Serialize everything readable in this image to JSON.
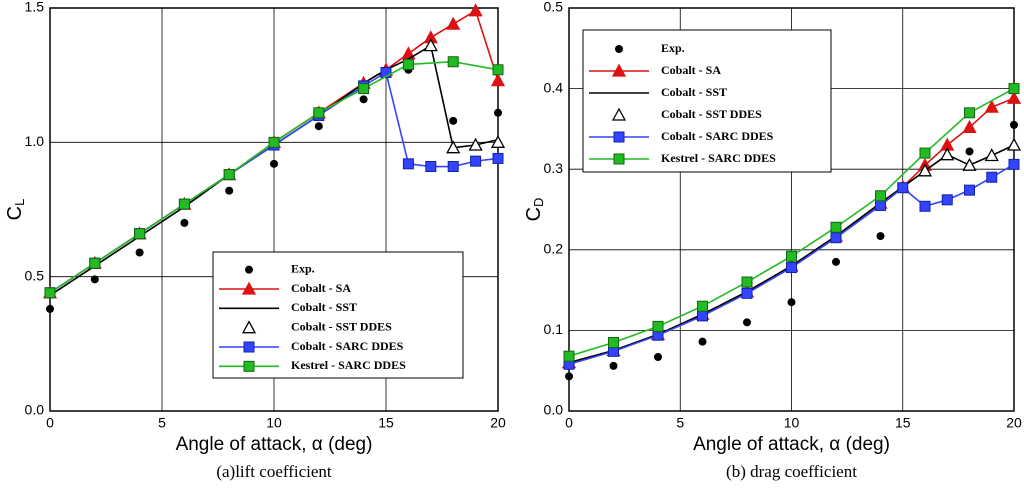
{
  "chart_data": [
    {
      "type": "line",
      "ylabel": "C",
      "ylabel_sub": "L",
      "xlabel": "Angle of attack, α (deg)",
      "caption": "(a)lift coefficient",
      "xlim": [
        0,
        20
      ],
      "xticks": [
        0,
        5,
        10,
        15,
        20
      ],
      "ylim": [
        0,
        1.5
      ],
      "yticks": [
        {
          "value": 0,
          "label": "0.0"
        },
        {
          "value": 0.5,
          "label": "0.5"
        },
        {
          "value": 1,
          "label": "1.0"
        },
        {
          "value": 1.5,
          "label": "1.5"
        }
      ],
      "grid": true,
      "legend": "lower-right",
      "series": [
        {
          "name": "Exp.",
          "color": "#000000",
          "marker": "circle",
          "line": false,
          "x": [
            0,
            2,
            4,
            6,
            8,
            10,
            12,
            14,
            16,
            18,
            20
          ],
          "values": [
            0.38,
            0.49,
            0.59,
            0.7,
            0.82,
            0.92,
            1.06,
            1.16,
            1.27,
            1.08,
            1.11
          ]
        },
        {
          "name": "Cobalt - SA",
          "color": "#dd1111",
          "marker": "triangle",
          "line": true,
          "x": [
            0,
            2,
            4,
            6,
            8,
            10,
            12,
            14,
            15,
            16,
            17,
            18,
            19,
            20
          ],
          "values": [
            0.44,
            0.55,
            0.66,
            0.77,
            0.88,
            1.0,
            1.11,
            1.22,
            1.27,
            1.33,
            1.39,
            1.44,
            1.49,
            1.23
          ]
        },
        {
          "name": "Cobalt - SST",
          "color": "#000000",
          "marker": "none",
          "line": true,
          "x": [
            0,
            2,
            4,
            6,
            8,
            10,
            12,
            14,
            15,
            16,
            17,
            18,
            19,
            20
          ],
          "values": [
            0.43,
            0.54,
            0.65,
            0.76,
            0.88,
            0.99,
            1.1,
            1.22,
            1.27,
            1.31,
            1.36,
            0.98,
            0.99,
            1.01
          ]
        },
        {
          "name": "Cobalt - SST DDES",
          "color": "#000000",
          "marker": "open-triangle",
          "line": false,
          "x": [
            17,
            18,
            19,
            20
          ],
          "values": [
            1.36,
            0.98,
            0.99,
            1.0
          ]
        },
        {
          "name": "Cobalt - SARC DDES",
          "color": "#3344ff",
          "marker": "square",
          "line": true,
          "x": [
            0,
            2,
            4,
            6,
            8,
            10,
            12,
            14,
            15,
            16,
            17,
            18,
            19,
            20
          ],
          "values": [
            0.44,
            0.55,
            0.66,
            0.77,
            0.88,
            0.99,
            1.1,
            1.21,
            1.26,
            0.92,
            0.91,
            0.91,
            0.93,
            0.94
          ]
        },
        {
          "name": "Kestrel - SARC DDES",
          "color": "#22bb22",
          "marker": "square",
          "line": true,
          "x": [
            0,
            2,
            4,
            6,
            8,
            10,
            12,
            14,
            16,
            18,
            20
          ],
          "values": [
            0.44,
            0.55,
            0.66,
            0.77,
            0.88,
            1.0,
            1.11,
            1.2,
            1.29,
            1.3,
            1.27
          ]
        }
      ]
    },
    {
      "type": "line",
      "ylabel": "C",
      "ylabel_sub": "D",
      "xlabel": "Angle of attack, α (deg)",
      "caption": "(b) drag coefficient",
      "xlim": [
        0,
        20
      ],
      "xticks": [
        0,
        5,
        10,
        15,
        20
      ],
      "ylim": [
        0,
        0.5
      ],
      "yticks": [
        {
          "value": 0,
          "label": "0.0"
        },
        0.1,
        0.2,
        0.3,
        0.4,
        0.5
      ],
      "grid": true,
      "legend": "upper-left",
      "series": [
        {
          "name": "Exp.",
          "color": "#000000",
          "marker": "circle",
          "line": false,
          "x": [
            0,
            2,
            4,
            6,
            8,
            10,
            12,
            14,
            16,
            18,
            20
          ],
          "values": [
            0.043,
            0.056,
            0.067,
            0.086,
            0.11,
            0.135,
            0.185,
            0.217,
            0.3,
            0.322,
            0.355
          ]
        },
        {
          "name": "Cobalt - SA",
          "color": "#dd1111",
          "marker": "triangle",
          "line": true,
          "x": [
            0,
            2,
            4,
            6,
            8,
            10,
            12,
            14,
            15,
            16,
            17,
            18,
            19,
            20
          ],
          "values": [
            0.06,
            0.075,
            0.095,
            0.12,
            0.148,
            0.18,
            0.217,
            0.258,
            0.278,
            0.305,
            0.33,
            0.352,
            0.377,
            0.388
          ]
        },
        {
          "name": "Cobalt - SST",
          "color": "#000000",
          "marker": "none",
          "line": true,
          "x": [
            0,
            2,
            4,
            6,
            8,
            10,
            12,
            14,
            15,
            16,
            17,
            18,
            19,
            20
          ],
          "values": [
            0.06,
            0.075,
            0.095,
            0.12,
            0.148,
            0.18,
            0.217,
            0.258,
            0.278,
            0.298,
            0.318,
            0.305,
            0.317,
            0.33
          ]
        },
        {
          "name": "Cobalt - SST DDES",
          "color": "#000000",
          "marker": "open-triangle",
          "line": false,
          "x": [
            16,
            17,
            18,
            19,
            20
          ],
          "values": [
            0.298,
            0.318,
            0.305,
            0.317,
            0.33
          ]
        },
        {
          "name": "Cobalt - SARC DDES",
          "color": "#3344ff",
          "marker": "square",
          "line": true,
          "x": [
            0,
            2,
            4,
            6,
            8,
            10,
            12,
            14,
            15,
            16,
            17,
            18,
            19,
            20
          ],
          "values": [
            0.058,
            0.074,
            0.094,
            0.118,
            0.146,
            0.178,
            0.215,
            0.255,
            0.277,
            0.254,
            0.262,
            0.274,
            0.29,
            0.306
          ]
        },
        {
          "name": "Kestrel - SARC DDES",
          "color": "#22bb22",
          "marker": "square",
          "line": true,
          "x": [
            0,
            2,
            4,
            6,
            8,
            10,
            12,
            14,
            16,
            18,
            20
          ],
          "values": [
            0.068,
            0.085,
            0.105,
            0.13,
            0.16,
            0.192,
            0.228,
            0.267,
            0.32,
            0.37,
            0.4
          ]
        }
      ]
    }
  ]
}
